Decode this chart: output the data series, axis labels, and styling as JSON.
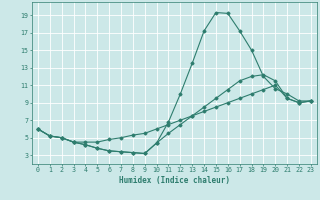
{
  "xlabel": "Humidex (Indice chaleur)",
  "bg_color": "#cce8e8",
  "grid_color": "#ffffff",
  "line_color": "#2e7d6e",
  "xmin": -0.5,
  "xmax": 23.5,
  "ymin": 2.0,
  "ymax": 20.5,
  "yticks": [
    3,
    5,
    7,
    9,
    11,
    13,
    15,
    17,
    19
  ],
  "xticks": [
    0,
    1,
    2,
    3,
    4,
    5,
    6,
    7,
    8,
    9,
    10,
    11,
    12,
    13,
    14,
    15,
    16,
    17,
    18,
    19,
    20,
    21,
    22,
    23
  ],
  "line1_x": [
    0,
    1,
    2,
    3,
    4,
    5,
    6,
    7,
    8,
    9,
    10,
    11,
    12,
    13,
    14,
    15,
    16,
    17,
    18,
    19,
    20,
    21,
    22,
    23
  ],
  "line1_y": [
    6.0,
    5.2,
    5.0,
    4.5,
    4.2,
    3.8,
    3.5,
    3.4,
    3.3,
    3.2,
    4.4,
    6.8,
    10.0,
    13.5,
    17.2,
    19.3,
    19.2,
    17.2,
    15.0,
    12.0,
    10.6,
    10.0,
    9.2,
    9.2
  ],
  "line2_x": [
    0,
    1,
    2,
    3,
    4,
    5,
    6,
    7,
    8,
    9,
    10,
    11,
    12,
    13,
    14,
    15,
    16,
    17,
    18,
    19,
    20,
    21,
    22,
    23
  ],
  "line2_y": [
    6.0,
    5.2,
    5.0,
    4.5,
    4.5,
    4.5,
    4.8,
    5.0,
    5.3,
    5.5,
    6.0,
    6.5,
    7.0,
    7.5,
    8.0,
    8.5,
    9.0,
    9.5,
    10.0,
    10.5,
    11.0,
    9.5,
    9.0,
    9.2
  ],
  "line3_x": [
    0,
    1,
    2,
    3,
    4,
    5,
    6,
    7,
    8,
    9,
    10,
    11,
    12,
    13,
    14,
    15,
    16,
    17,
    18,
    19,
    20,
    21,
    22,
    23
  ],
  "line3_y": [
    6.0,
    5.2,
    5.0,
    4.5,
    4.2,
    3.8,
    3.5,
    3.4,
    3.3,
    3.2,
    4.4,
    5.5,
    6.5,
    7.5,
    8.5,
    9.5,
    10.5,
    11.5,
    12.0,
    12.2,
    11.5,
    9.5,
    9.0,
    9.2
  ],
  "xlabel_fontsize": 5.5,
  "tick_fontsize": 4.8,
  "lw": 0.8,
  "ms": 1.5
}
